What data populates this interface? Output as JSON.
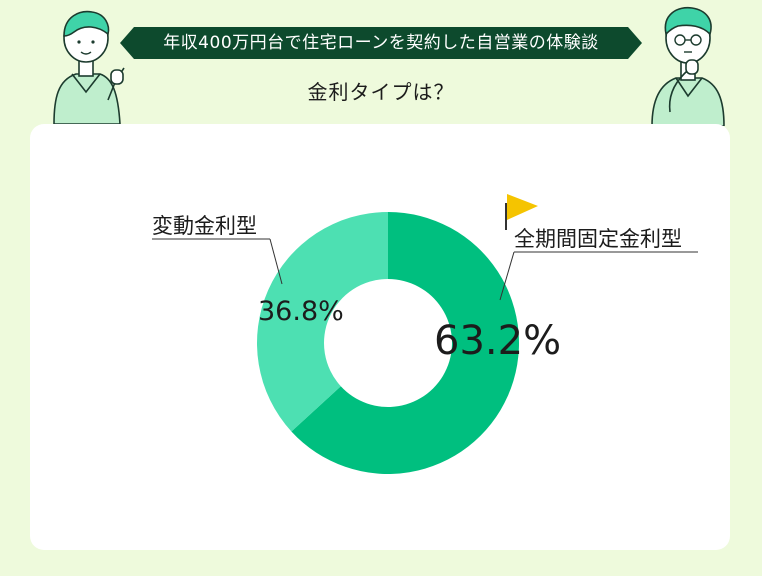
{
  "header": {
    "banner_title": "年収400万円台で住宅ローンを契約した自営業の体験談",
    "question": "金利タイプは？"
  },
  "colors": {
    "background": "#eefadc",
    "banner": "#0d4a2d",
    "fixed": "#00bf7f",
    "variable": "#4de0b2",
    "flag": "#f5c400"
  },
  "chart_data": {
    "type": "pie",
    "donut": true,
    "unit": "%",
    "slices": [
      {
        "name": "全期間固定金利型",
        "value": 63.2,
        "label": "63.2%",
        "color": "#00bf7f"
      },
      {
        "name": "変動金利型",
        "value": 36.8,
        "label": "36.8%",
        "color": "#4de0b2"
      }
    ]
  }
}
